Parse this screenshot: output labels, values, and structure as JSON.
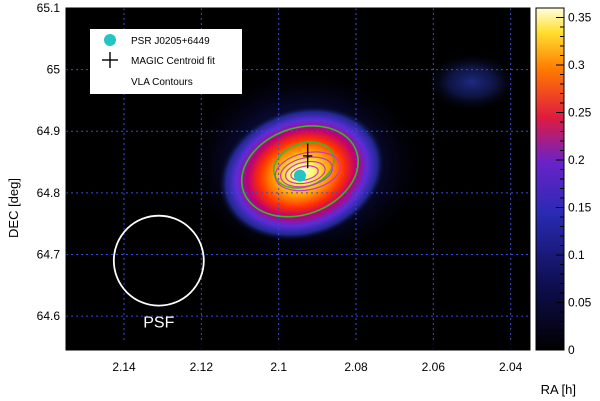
{
  "chart_data": {
    "type": "heatmap",
    "title": "",
    "xlabel": "RA [h]",
    "ylabel": "DEC [deg]",
    "xlim": [
      2.155,
      2.035
    ],
    "ylim": [
      64.545,
      65.1
    ],
    "x_axis_reversed": true,
    "x_ticks": [
      2.14,
      2.12,
      2.1,
      2.08,
      2.06,
      2.04
    ],
    "x_tick_labels": [
      "2.14",
      "2.12",
      "2.1",
      "2.08",
      "2.06",
      "2.04"
    ],
    "y_ticks": [
      64.6,
      64.7,
      64.8,
      64.9,
      65.0,
      65.1
    ],
    "y_tick_labels": [
      "64.6",
      "64.7",
      "64.8",
      "64.9",
      "65",
      "65.1"
    ],
    "colorbar": {
      "range": [
        0,
        0.36
      ],
      "ticks": [
        0,
        0.05,
        0.1,
        0.15,
        0.2,
        0.25,
        0.3,
        0.35
      ],
      "tick_labels": [
        "0",
        "0.05",
        "0.1",
        "0.15",
        "0.2",
        "0.25",
        "0.3",
        "0.35"
      ]
    },
    "grid": true,
    "grid_style": "dotted-blue",
    "excess_peak": {
      "ra": 2.093,
      "dec": 64.845,
      "peak_value": 0.35
    },
    "secondary_blob": {
      "ra": 2.05,
      "dec": 64.98,
      "value": 0.13
    },
    "green_contours": [
      {
        "center_ra": 2.0945,
        "center_dec": 64.835,
        "semi_ra": 0.0155,
        "semi_dec": 0.07
      },
      {
        "center_ra": 2.0935,
        "center_dec": 64.845,
        "semi_ra": 0.008,
        "semi_dec": 0.035
      }
    ],
    "vla_contours": [
      {
        "center_ra": 2.0925,
        "center_dec": 64.835,
        "semi_ra": 0.0085,
        "semi_dec": 0.03
      },
      {
        "center_ra": 2.0928,
        "center_dec": 64.834,
        "semi_ra": 0.0068,
        "semi_dec": 0.023
      },
      {
        "center_ra": 2.0931,
        "center_dec": 64.833,
        "semi_ra": 0.0052,
        "semi_dec": 0.017
      },
      {
        "center_ra": 2.0933,
        "center_dec": 64.832,
        "semi_ra": 0.0036,
        "semi_dec": 0.011
      }
    ],
    "pulsar": {
      "name": "PSR J0205+6449",
      "ra": 2.0945,
      "dec": 64.828,
      "color": "#22c4c4"
    },
    "centroid_fit": {
      "name": "MAGIC Centroid fit",
      "ra": 2.0925,
      "dec": 64.86,
      "err_ra": 0.0012,
      "err_dec": 0.02
    },
    "psf": {
      "label": "PSF",
      "center_ra": 2.131,
      "center_dec": 64.69,
      "radius_dec": 0.073
    },
    "legend": {
      "position": "top-left",
      "entries": [
        "PSR J0205+6449",
        "MAGIC Centroid fit",
        "VLA Contours"
      ]
    },
    "colors": {
      "background": "#000000",
      "grid": "#3a4adc",
      "green_contour": "#3ab82a",
      "vla_contour": "#d033c8",
      "psf_circle": "#ffffff"
    }
  }
}
